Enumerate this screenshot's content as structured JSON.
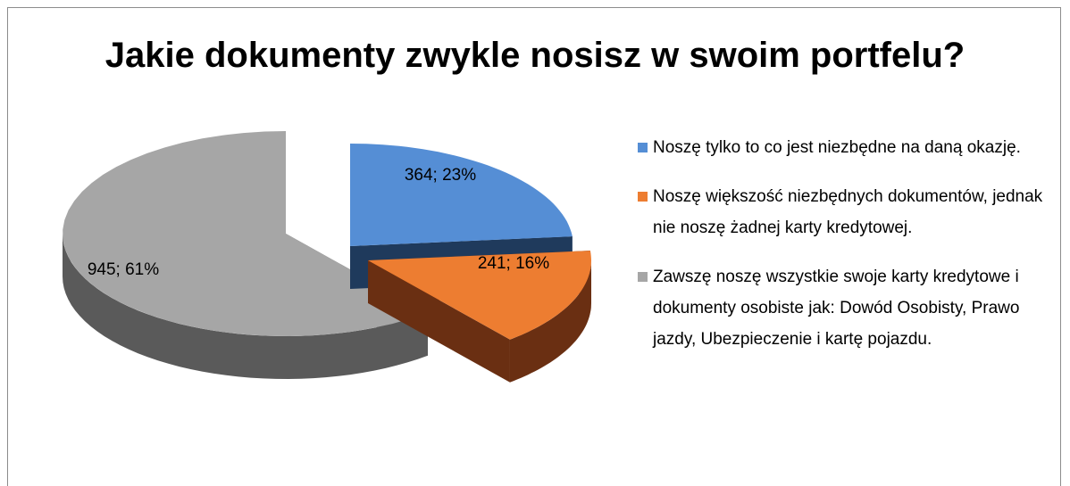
{
  "chart_data": {
    "type": "pie3d",
    "title": "Jakie dokumenty zwykle nosisz w swoim portfelu?",
    "categories": [
      "Noszę tylko to co jest niezbędne na daną okazję.",
      "Noszę większość niezbędnych dokumentów, jednak nie noszę żadnej karty kredytowej.",
      "Zawszę noszę wszystkie  swoje karty kredytowe i dokumenty osobiste jak: Dowód Osobisty, Prawo jazdy, Ubezpieczenie i kartę pojazdu."
    ],
    "values": [
      364,
      241,
      945
    ],
    "value_labels": [
      "364; 23%",
      "241; 16%",
      "945; 61%"
    ],
    "colors": [
      "#558ed5",
      "#ed7d31",
      "#a6a6a6"
    ],
    "side_colors": [
      "#1f3a5c",
      "#6a2f12",
      "#5a5a5a"
    ],
    "legend": "right"
  }
}
